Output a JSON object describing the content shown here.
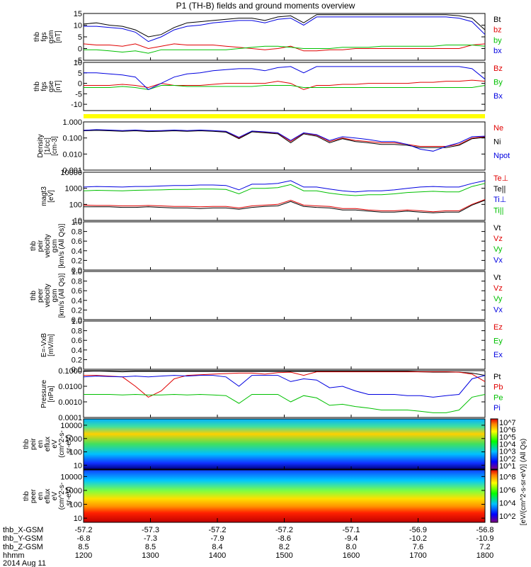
{
  "title": "P1 (TH-B) fields and ground moments overview",
  "colors": {
    "black": "#000000",
    "red": "#e00000",
    "green": "#00c000",
    "blue": "#0000e0",
    "yellow": "#ffff00"
  },
  "chart_data": [
    {
      "type": "line",
      "id": "fgs_gsm",
      "ylabel_lines": [
        "thb",
        "fgs",
        "gsm",
        "[nT]"
      ],
      "ylim": [
        -5,
        15
      ],
      "yticks": [
        -5,
        0,
        5,
        10,
        15
      ],
      "series": [
        {
          "name": "Bt",
          "color": "#000000",
          "y": [
            10.5,
            11,
            10,
            9.5,
            8,
            5,
            6,
            9,
            11,
            11.5,
            12,
            12.5,
            13,
            13,
            12,
            13.5,
            14,
            11,
            14.5,
            14.5,
            14.5,
            14.5,
            14.5,
            14.5,
            14.5,
            14.5,
            14.5,
            14.5,
            14.5,
            14,
            13,
            8
          ]
        },
        {
          "name": "bz",
          "color": "#e00000",
          "y": [
            2,
            1.5,
            1.5,
            1,
            2,
            0,
            1,
            2,
            1.5,
            1.5,
            1.5,
            1,
            0.5,
            0,
            -0.5,
            0,
            1,
            -1,
            -1,
            -0.5,
            -0.5,
            0,
            0,
            0,
            0,
            0,
            0,
            0,
            0,
            0,
            1.5,
            2
          ]
        },
        {
          "name": "by",
          "color": "#00c000",
          "y": [
            -0.5,
            -0.5,
            -1,
            -1.5,
            -1,
            -2,
            -0.5,
            -0.5,
            -0.5,
            -0.5,
            -0.5,
            -0.5,
            0,
            0.5,
            1,
            1,
            0.5,
            0,
            0,
            0,
            0.5,
            0.5,
            0.5,
            1,
            1,
            1,
            1,
            1,
            1.5,
            1.5,
            1.5,
            1
          ]
        },
        {
          "name": "bx",
          "color": "#0000e0",
          "y": [
            9.5,
            9.5,
            9,
            8.5,
            7,
            3,
            5,
            8,
            9.5,
            10,
            11,
            11.5,
            12,
            12,
            11,
            12.5,
            13,
            10,
            13.5,
            13.5,
            13.5,
            13.5,
            13.5,
            13.5,
            13.5,
            13.5,
            13.5,
            13.5,
            13.5,
            13,
            11.5,
            6
          ]
        }
      ]
    },
    {
      "type": "line",
      "id": "fgs_gse",
      "ylabel_lines": [
        "thb",
        "fgs",
        "gse",
        "[nT]"
      ],
      "ylim": [
        -13,
        10
      ],
      "yticks": [
        -10,
        -5,
        0,
        5,
        10
      ],
      "series": [
        {
          "name": "Bz",
          "color": "#e00000",
          "y": [
            -1,
            -1,
            -1,
            -0.5,
            -1,
            -2,
            0,
            -1,
            -1,
            -1,
            -0.5,
            0,
            0,
            0,
            0,
            1,
            0,
            -3,
            -1,
            -1,
            -0.5,
            -0.5,
            0,
            0,
            0,
            0,
            0.5,
            0.5,
            1,
            1,
            1.5,
            1
          ]
        },
        {
          "name": "By",
          "color": "#00c000",
          "y": [
            -2,
            -2,
            -2,
            -1.5,
            -2,
            -3,
            -1,
            -1,
            -1.5,
            -1.5,
            -1.5,
            -1.5,
            -1.5,
            -1.5,
            -1,
            -1,
            -1,
            -2,
            -2,
            -2,
            -2,
            -2,
            -2,
            -2,
            -2,
            -2,
            -2,
            -2,
            -2,
            -2,
            -2,
            -1
          ]
        },
        {
          "name": "Bx",
          "color": "#0000e0",
          "y": [
            5,
            5,
            4.5,
            4,
            3,
            -3,
            0,
            3,
            4.5,
            5,
            6,
            6.5,
            7,
            7,
            6,
            7.5,
            8,
            5,
            8,
            8,
            8,
            8,
            8,
            8,
            8,
            8,
            8,
            8,
            8,
            8,
            7,
            2
          ]
        }
      ]
    },
    {
      "type": "line",
      "id": "density",
      "log": true,
      "ylabel_lines": [
        "Density",
        "[1/cc]",
        "[cm-3]"
      ],
      "ylim": [
        0.001,
        1.0
      ],
      "yticks": [
        0.001,
        0.01,
        0.1,
        1.0
      ],
      "yticklabels": [
        "0.001",
        "0.010",
        "0.100",
        "1.000"
      ],
      "series": [
        {
          "name": "Ne",
          "color": "#e00000",
          "y": [
            0.3,
            0.32,
            0.3,
            0.28,
            0.3,
            0.27,
            0.28,
            0.3,
            0.28,
            0.3,
            0.28,
            0.25,
            0.1,
            0.26,
            0.23,
            0.2,
            0.06,
            0.2,
            0.15,
            0.06,
            0.1,
            0.07,
            0.06,
            0.05,
            0.05,
            0.04,
            0.03,
            0.03,
            0.03,
            0.04,
            0.1,
            0.12
          ]
        },
        {
          "name": "Ni",
          "color": "#000000",
          "y": [
            0.28,
            0.3,
            0.28,
            0.26,
            0.28,
            0.25,
            0.26,
            0.28,
            0.26,
            0.28,
            0.26,
            0.23,
            0.09,
            0.24,
            0.21,
            0.18,
            0.05,
            0.18,
            0.13,
            0.05,
            0.09,
            0.06,
            0.05,
            0.04,
            0.04,
            0.035,
            0.025,
            0.025,
            0.025,
            0.035,
            0.09,
            0.11
          ]
        },
        {
          "name": "Npot",
          "color": "#0000e0",
          "y": [
            0.3,
            0.33,
            0.31,
            0.29,
            0.31,
            0.28,
            0.29,
            0.31,
            0.29,
            0.31,
            0.29,
            0.26,
            0.11,
            0.27,
            0.24,
            0.21,
            0.07,
            0.21,
            0.16,
            0.07,
            0.12,
            0.1,
            0.08,
            0.06,
            0.06,
            0.04,
            0.02,
            0.015,
            0.03,
            0.05,
            0.12,
            0.13
          ]
        }
      ]
    },
    {
      "type": "line",
      "id": "temperature",
      "log": true,
      "ylabel_lines": [
        "magt3",
        "[eV]"
      ],
      "ylim": [
        10,
        10000
      ],
      "yticks": [
        10,
        100,
        1000,
        10000
      ],
      "yticklabels": [
        "10",
        "100",
        "1000",
        "10000"
      ],
      "series": [
        {
          "name": "Te⊥",
          "color": "#e00000",
          "y": [
            90,
            85,
            85,
            80,
            80,
            85,
            80,
            75,
            75,
            70,
            75,
            75,
            60,
            80,
            90,
            100,
            180,
            90,
            80,
            75,
            55,
            55,
            45,
            40,
            40,
            45,
            40,
            35,
            40,
            40,
            100,
            200
          ]
        },
        {
          "name": "Te||",
          "color": "#000000",
          "y": [
            70,
            70,
            70,
            65,
            65,
            70,
            65,
            60,
            60,
            55,
            60,
            60,
            50,
            65,
            75,
            80,
            150,
            75,
            65,
            60,
            45,
            45,
            38,
            33,
            33,
            38,
            33,
            30,
            33,
            33,
            90,
            180
          ]
        },
        {
          "name": "Ti⊥",
          "color": "#0000e0",
          "y": [
            1200,
            1300,
            1250,
            1200,
            1300,
            1300,
            1400,
            1500,
            1500,
            1600,
            1600,
            1500,
            800,
            1800,
            1800,
            2000,
            3000,
            1200,
            1200,
            900,
            700,
            600,
            700,
            700,
            800,
            1000,
            1200,
            1300,
            1200,
            1200,
            2000,
            3000
          ]
        },
        {
          "name": "Ti||",
          "color": "#00c000",
          "y": [
            700,
            750,
            720,
            700,
            750,
            780,
            800,
            850,
            850,
            900,
            900,
            850,
            450,
            1000,
            1000,
            1100,
            1700,
            700,
            700,
            500,
            400,
            350,
            400,
            400,
            450,
            550,
            600,
            650,
            600,
            600,
            1300,
            2000
          ]
        }
      ]
    },
    {
      "type": "line",
      "id": "peir_velocity",
      "ylabel_lines": [
        "thb",
        "peir",
        "velocity",
        "gsm",
        "[km/s (All Qs)]"
      ],
      "ylim": [
        0,
        1
      ],
      "yticks": [
        0,
        0.2,
        0.4,
        0.6,
        0.8,
        1.0
      ],
      "yticklabels": [
        "0.0",
        "0.2",
        "0.4",
        "0.6",
        "0.8",
        "1.0"
      ],
      "series": [
        {
          "name": "Vt",
          "color": "#000000",
          "y": []
        },
        {
          "name": "Vz",
          "color": "#e00000",
          "y": []
        },
        {
          "name": "Vy",
          "color": "#00c000",
          "y": []
        },
        {
          "name": "Vx",
          "color": "#0000e0",
          "y": []
        }
      ]
    },
    {
      "type": "line",
      "id": "peer_velocity",
      "ylabel_lines": [
        "thb",
        "peer",
        "velocity",
        "gsm",
        "[km/s (All Qs)]"
      ],
      "ylim": [
        0,
        1
      ],
      "yticks": [
        0,
        0.2,
        0.4,
        0.6,
        0.8,
        1.0
      ],
      "yticklabels": [
        "0.0",
        "0.2",
        "0.4",
        "0.6",
        "0.8",
        "1.0"
      ],
      "series": [
        {
          "name": "Vt",
          "color": "#000000",
          "y": []
        },
        {
          "name": "Vz",
          "color": "#e00000",
          "y": []
        },
        {
          "name": "Vy",
          "color": "#00c000",
          "y": []
        },
        {
          "name": "Vx",
          "color": "#0000e0",
          "y": []
        }
      ]
    },
    {
      "type": "line",
      "id": "efield",
      "ylabel_lines": [
        "E=-VxB",
        "[mV/m]"
      ],
      "ylim": [
        0,
        1
      ],
      "yticks": [
        0,
        0.2,
        0.4,
        0.6,
        0.8,
        1.0
      ],
      "yticklabels": [
        "0.0",
        "0.2",
        "0.4",
        "0.6",
        "0.8",
        "1.0"
      ],
      "series": [
        {
          "name": "Ez",
          "color": "#e00000",
          "y": []
        },
        {
          "name": "Ey",
          "color": "#00c000",
          "y": []
        },
        {
          "name": "Ex",
          "color": "#0000e0",
          "y": []
        }
      ]
    },
    {
      "type": "line",
      "id": "pressure",
      "log": true,
      "ylabel_lines": [
        "Pressure",
        "[nPa]"
      ],
      "ylim": [
        0.0001,
        0.1
      ],
      "yticks": [
        0.0001,
        0.001,
        0.01,
        0.1
      ],
      "yticklabels": [
        "0.0001",
        "0.0010",
        "0.0100",
        "0.1000"
      ],
      "series": [
        {
          "name": "Pt",
          "color": "#000000",
          "y": [
            0.09,
            0.095,
            0.09,
            0.085,
            0.09,
            0.09,
            0.09,
            0.09,
            0.09,
            0.09,
            0.09,
            0.09,
            0.09,
            0.09,
            0.09,
            0.09,
            0.09,
            0.09,
            0.09,
            0.09,
            0.09,
            0.09,
            0.09,
            0.09,
            0.09,
            0.09,
            0.085,
            0.08,
            0.08,
            0.08,
            0.07,
            0.05
          ]
        },
        {
          "name": "Pb",
          "color": "#e00000",
          "y": [
            0.05,
            0.05,
            0.045,
            0.04,
            0.01,
            0.002,
            0.005,
            0.03,
            0.05,
            0.055,
            0.06,
            0.065,
            0.07,
            0.07,
            0.06,
            0.075,
            0.08,
            0.05,
            0.085,
            0.085,
            0.085,
            0.085,
            0.085,
            0.085,
            0.085,
            0.085,
            0.085,
            0.085,
            0.085,
            0.08,
            0.06,
            0.02
          ]
        },
        {
          "name": "Pe",
          "color": "#00c000",
          "y": [
            0.003,
            0.003,
            0.003,
            0.0028,
            0.003,
            0.0028,
            0.0028,
            0.003,
            0.0028,
            0.003,
            0.0028,
            0.0025,
            0.0008,
            0.003,
            0.003,
            0.003,
            0.001,
            0.0025,
            0.0018,
            0.0006,
            0.0007,
            0.0005,
            0.0004,
            0.0003,
            0.0003,
            0.0003,
            0.00025,
            0.0002,
            0.0002,
            0.0003,
            0.002,
            0.003
          ]
        },
        {
          "name": "Pi",
          "color": "#0000e0",
          "y": [
            0.04,
            0.045,
            0.042,
            0.04,
            0.045,
            0.04,
            0.045,
            0.05,
            0.045,
            0.05,
            0.05,
            0.04,
            0.01,
            0.05,
            0.05,
            0.05,
            0.02,
            0.03,
            0.025,
            0.008,
            0.01,
            0.005,
            0.003,
            0.003,
            0.003,
            0.0025,
            0.0025,
            0.002,
            0.0025,
            0.003,
            0.03,
            0.05
          ]
        }
      ]
    },
    {
      "type": "heatmap",
      "id": "peir_eflux",
      "log": true,
      "ylabel_lines": [
        "thb",
        "peir",
        "en",
        "eflux",
        "eV",
        "(cm^2-s-",
        "sr-eV)"
      ],
      "ylim": [
        5,
        30000
      ],
      "yticks": [
        10,
        100,
        1000,
        10000
      ],
      "yticklabels": [
        "10",
        "100",
        "1000",
        "10000"
      ],
      "colorbar": {
        "labels": [
          "10^1",
          "10^2",
          "10^3",
          "10^4",
          "10^5",
          "10^6",
          "10^7"
        ],
        "title": "[eV/(cm^2-s-sr-eV)] (All Qs)"
      }
    },
    {
      "type": "heatmap",
      "id": "peer_eflux",
      "log": true,
      "ylabel_lines": [
        "thb",
        "peer",
        "en",
        "eflux",
        "eV",
        "(cm^2-s-",
        "sr-eV)"
      ],
      "ylim": [
        5,
        30000
      ],
      "yticks": [
        10,
        100,
        1000,
        10000
      ],
      "yticklabels": [
        "10",
        "100",
        "1000",
        "10000"
      ],
      "colorbar": {
        "labels": [
          "10^2",
          "10^4",
          "10^6",
          "10^8"
        ],
        "title": "[eV/(cm^2-s-sr-eV)]"
      }
    }
  ],
  "legend_labels": {
    "fgs_gsm": [
      "Bt",
      "bz",
      "by",
      "bx"
    ],
    "fgs_gse": [
      "Bz",
      "By",
      "Bx"
    ],
    "density": [
      "Ne",
      "Ni",
      "Npot"
    ],
    "temperature": [
      "Te⊥",
      "Te||",
      "Ti⊥",
      "Ti||"
    ],
    "peir_velocity": [
      "Vt",
      "Vz",
      "Vy",
      "Vx"
    ],
    "peer_velocity": [
      "Vt",
      "Vz",
      "Vy",
      "Vx"
    ],
    "efield": [
      "Ez",
      "Ey",
      "Ex"
    ],
    "pressure": [
      "Pt",
      "Pb",
      "Pe",
      "Pi"
    ]
  },
  "x_axis": {
    "row_labels": [
      "thb_X-GSM",
      "thb_Y-GSM",
      "thb_Z-GSM",
      "hhmm",
      "2014 Aug 11"
    ],
    "x_gsm": [
      "-57.2",
      "-57.3",
      "-57.2",
      "-57.2",
      "-57.1",
      "-56.9",
      "-56.8"
    ],
    "y_gsm": [
      "-6.8",
      "-7.3",
      "-7.9",
      "-8.6",
      "-9.4",
      "-10.2",
      "-10.9"
    ],
    "z_gsm": [
      "8.5",
      "8.5",
      "8.4",
      "8.2",
      "8.0",
      "7.6",
      "7.2"
    ],
    "hhmm": [
      "1200",
      "1300",
      "1400",
      "1500",
      "1600",
      "1700",
      "1800"
    ]
  }
}
